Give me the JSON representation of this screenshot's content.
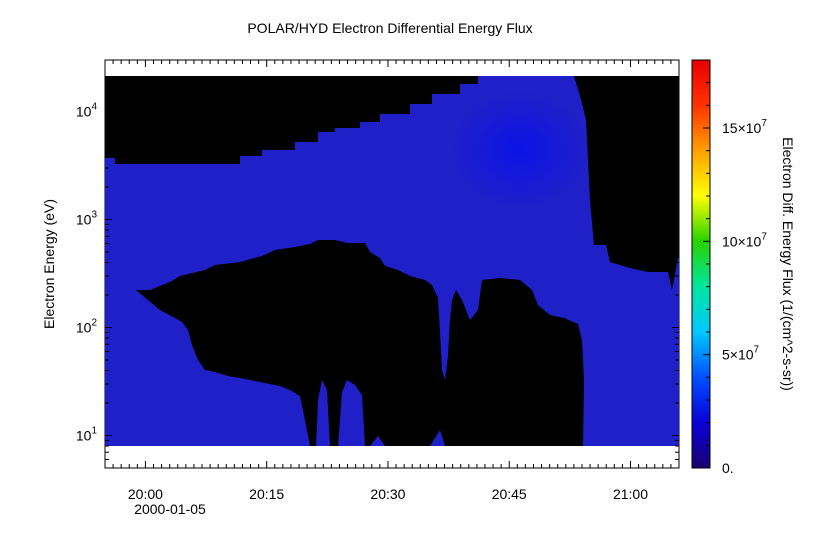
{
  "chart_data": {
    "type": "heatmap",
    "title": "POLAR/HYD  Electron Differential Energy Flux",
    "xlabel": "",
    "ylabel": "Electron Energy (eV)",
    "x_date": "2000-01-05",
    "x_range": [
      "19:55:00",
      "21:06:00"
    ],
    "x_ticks": [
      "20:00",
      "20:15",
      "20:30",
      "20:45",
      "21:00"
    ],
    "y_scale": "log",
    "y_range": [
      5,
      30000
    ],
    "y_ticks": [
      {
        "value": 10,
        "base": "10",
        "exp": "1"
      },
      {
        "value": 100,
        "base": "10",
        "exp": "2"
      },
      {
        "value": 1000,
        "base": "10",
        "exp": "3"
      },
      {
        "value": 10000,
        "base": "10",
        "exp": "4"
      }
    ],
    "colorbar": {
      "label": "Electron Diff. Energy Flux (1/(cm^2-s-sr))",
      "range": [
        0,
        180000000
      ],
      "ticks": [
        {
          "value": 0,
          "label": "0."
        },
        {
          "value": 50000000,
          "base": "5×10",
          "exp": "7"
        },
        {
          "value": 100000000,
          "base": "10×10",
          "exp": "7"
        },
        {
          "value": 150000000,
          "base": "15×10",
          "exp": "7"
        }
      ],
      "colormap": [
        "#1a0070",
        "#0a00d8",
        "#0050ff",
        "#00c8ff",
        "#00e6a0",
        "#28d200",
        "#ffff00",
        "#ffa000",
        "#ff3200",
        "#e60000"
      ]
    },
    "series": [
      {
        "values_description_only": false,
        "x": [
          "19:55",
          "20:00",
          "20:05",
          "20:10",
          "20:15",
          "20:20",
          "20:25",
          "20:30",
          "20:35",
          "20:40",
          "20:45",
          "20:50",
          "20:53",
          "20:54",
          "20:57",
          "21:00",
          "21:05"
        ],
        "upper_energy_eV": [
          4000,
          3500,
          3700,
          4000,
          4500,
          6500,
          9000,
          12000,
          18000,
          26000,
          28000,
          28000,
          28000,
          2000,
          600,
          500,
          550
        ],
        "fill_flux": 20000000,
        "peak_flux": {
          "time": "20:47",
          "energy_eV": 5500,
          "flux": 35000000
        }
      }
    ],
    "data_gap_low_energy": {
      "x_start": "20:00",
      "x_end": "20:55",
      "lower_eV": 8,
      "upper_eV": [
        160,
        300,
        600,
        700,
        500,
        250,
        200,
        250
      ]
    }
  }
}
